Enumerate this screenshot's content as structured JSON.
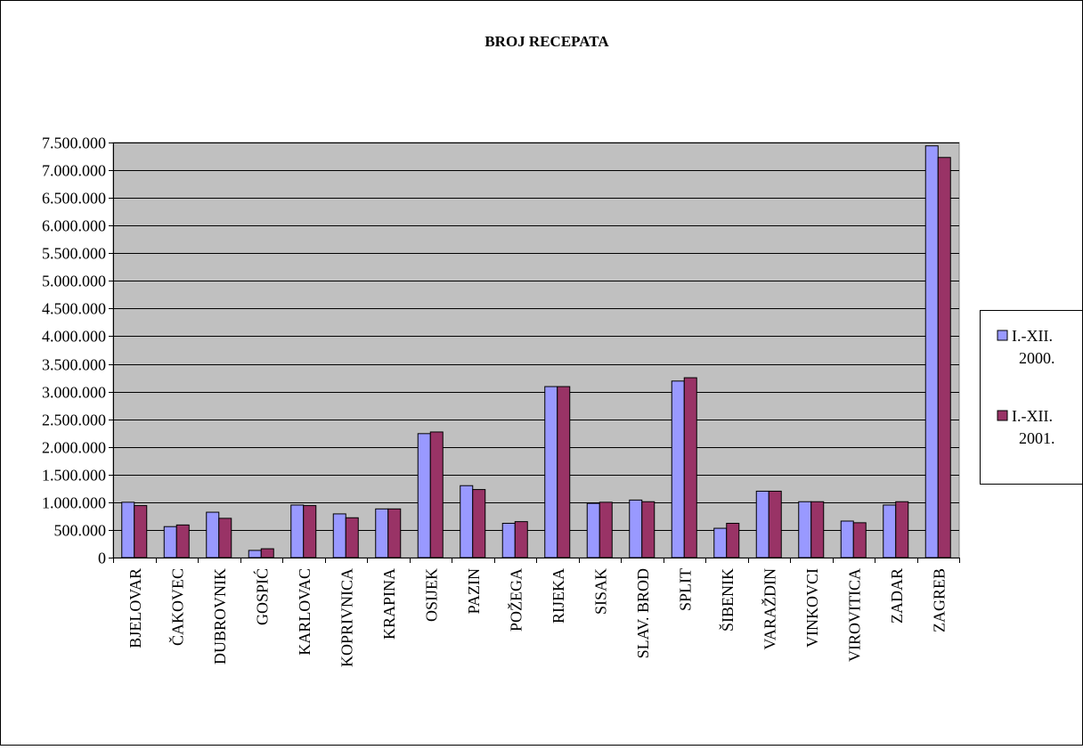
{
  "chart_data": {
    "type": "bar",
    "title": "BROJ RECEPATA",
    "xlabel": "",
    "ylabel": "",
    "ylim": [
      0,
      7500000
    ],
    "yticks": [
      0,
      500000,
      1000000,
      1500000,
      2000000,
      2500000,
      3000000,
      3500000,
      4000000,
      4500000,
      5000000,
      5500000,
      6000000,
      6500000,
      7000000,
      7500000
    ],
    "ytick_labels": [
      "0",
      "500.000",
      "1.000.000",
      "1.500.000",
      "2.000.000",
      "2.500.000",
      "3.000.000",
      "3.500.000",
      "4.000.000",
      "4.500.000",
      "5.000.000",
      "5.500.000",
      "6.000.000",
      "6.500.000",
      "7.000.000",
      "7.500.000"
    ],
    "grid": true,
    "plot_background": "#C0C0C0",
    "legend_position": "right",
    "categories": [
      "BJELOVAR",
      "ČAKOVEC",
      "DUBROVNIK",
      "GOSPIĆ",
      "KARLOVAC",
      "KOPRIVNICA",
      "KRAPINA",
      "OSIJEK",
      "PAZIN",
      "POŽEGA",
      "RIJEKA",
      "SISAK",
      "SLAV. BROD",
      "SPLIT",
      "ŠIBENIK",
      "VARAŽDIN",
      "VINKOVCI",
      "VIROVITICA",
      "ZADAR",
      "ZAGREB"
    ],
    "series": [
      {
        "name": "I.-XII. 2000.",
        "legend_lines": [
          "I.-XII.",
          "2000."
        ],
        "color": "#9999FF",
        "values": [
          1000000,
          560000,
          820000,
          130000,
          950000,
          790000,
          880000,
          2240000,
          1300000,
          620000,
          3090000,
          980000,
          1040000,
          3190000,
          530000,
          1200000,
          1010000,
          660000,
          950000,
          7440000
        ]
      },
      {
        "name": "I.-XII. 2001.",
        "legend_lines": [
          "I.-XII.",
          "2001."
        ],
        "color": "#993366",
        "values": [
          940000,
          590000,
          710000,
          160000,
          940000,
          720000,
          880000,
          2270000,
          1230000,
          650000,
          3090000,
          1000000,
          1010000,
          3250000,
          620000,
          1200000,
          1010000,
          630000,
          1010000,
          7230000
        ]
      }
    ]
  }
}
